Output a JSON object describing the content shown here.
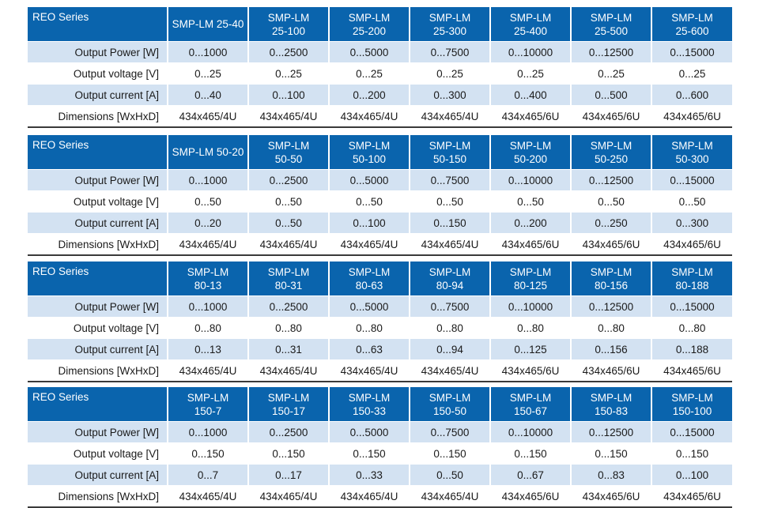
{
  "row_labels": {
    "series": "REO Series",
    "output_power": "Output Power [W]",
    "output_voltage": "Output voltage [V]",
    "output_current": "Output current [A]",
    "dimensions": "Dimensions [WxHxD]"
  },
  "tables": [
    {
      "models": [
        {
          "line1": "SMP-LM 25-40",
          "line2": ""
        },
        {
          "line1": "SMP-LM",
          "line2": "25-100"
        },
        {
          "line1": "SMP-LM",
          "line2": "25-200"
        },
        {
          "line1": "SMP-LM",
          "line2": "25-300"
        },
        {
          "line1": "SMP-LM",
          "line2": "25-400"
        },
        {
          "line1": "SMP-LM",
          "line2": "25-500"
        },
        {
          "line1": "SMP-LM",
          "line2": "25-600"
        }
      ],
      "output_power": [
        "0...1000",
        "0...2500",
        "0...5000",
        "0...7500",
        "0...10000",
        "0...12500",
        "0...15000"
      ],
      "output_voltage": [
        "0...25",
        "0...25",
        "0...25",
        "0...25",
        "0...25",
        "0...25",
        "0...25"
      ],
      "output_current": [
        "0...40",
        "0...100",
        "0...200",
        "0...300",
        "0...400",
        "0...500",
        "0...600"
      ],
      "dimensions": [
        "434x465/4U",
        "434x465/4U",
        "434x465/4U",
        "434x465/4U",
        "434x465/6U",
        "434x465/6U",
        "434x465/6U"
      ]
    },
    {
      "models": [
        {
          "line1": "SMP-LM 50-20",
          "line2": ""
        },
        {
          "line1": "SMP-LM",
          "line2": "50-50"
        },
        {
          "line1": "SMP-LM",
          "line2": "50-100"
        },
        {
          "line1": "SMP-LM",
          "line2": "50-150"
        },
        {
          "line1": "SMP-LM",
          "line2": "50-200"
        },
        {
          "line1": "SMP-LM",
          "line2": "50-250"
        },
        {
          "line1": "SMP-LM",
          "line2": "50-300"
        }
      ],
      "output_power": [
        "0...1000",
        "0...2500",
        "0...5000",
        "0...7500",
        "0...10000",
        "0...12500",
        "0...15000"
      ],
      "output_voltage": [
        "0...50",
        "0...50",
        "0...50",
        "0...50",
        "0...50",
        "0...50",
        "0...50"
      ],
      "output_current": [
        "0...20",
        "0...50",
        "0...100",
        "0...150",
        "0...200",
        "0...250",
        "0...300"
      ],
      "dimensions": [
        "434x465/4U",
        "434x465/4U",
        "434x465/4U",
        "434x465/4U",
        "434x465/6U",
        "434x465/6U",
        "434x465/6U"
      ]
    },
    {
      "models": [
        {
          "line1": "SMP-LM",
          "line2": "80-13"
        },
        {
          "line1": "SMP-LM",
          "line2": "80-31"
        },
        {
          "line1": "SMP-LM",
          "line2": "80-63"
        },
        {
          "line1": "SMP-LM",
          "line2": "80-94"
        },
        {
          "line1": "SMP-LM",
          "line2": "80-125"
        },
        {
          "line1": "SMP-LM",
          "line2": "80-156"
        },
        {
          "line1": "SMP-LM",
          "line2": "80-188"
        }
      ],
      "output_power": [
        "0...1000",
        "0...2500",
        "0...5000",
        "0...7500",
        "0...10000",
        "0...12500",
        "0...15000"
      ],
      "output_voltage": [
        "0...80",
        "0...80",
        "0...80",
        "0...80",
        "0...80",
        "0...80",
        "0...80"
      ],
      "output_current": [
        "0...13",
        "0...31",
        "0...63",
        "0...94",
        "0...125",
        "0...156",
        "0...188"
      ],
      "dimensions": [
        "434x465/4U",
        "434x465/4U",
        "434x465/4U",
        "434x465/4U",
        "434x465/6U",
        "434x465/6U",
        "434x465/6U"
      ]
    },
    {
      "models": [
        {
          "line1": "SMP-LM",
          "line2": "150-7"
        },
        {
          "line1": "SMP-LM",
          "line2": "150-17"
        },
        {
          "line1": "SMP-LM",
          "line2": "150-33"
        },
        {
          "line1": "SMP-LM",
          "line2": "150-50"
        },
        {
          "line1": "SMP-LM",
          "line2": "150-67"
        },
        {
          "line1": "SMP-LM",
          "line2": "150-83"
        },
        {
          "line1": "SMP-LM",
          "line2": "150-100"
        }
      ],
      "output_power": [
        "0...1000",
        "0...2500",
        "0...5000",
        "0...7500",
        "0...10000",
        "0...12500",
        "0...15000"
      ],
      "output_voltage": [
        "0...150",
        "0...150",
        "0...150",
        "0...150",
        "0...150",
        "0...150",
        "0...150"
      ],
      "output_current": [
        "0...7",
        "0...17",
        "0...33",
        "0...50",
        "0...67",
        "0...83",
        "0...100"
      ],
      "dimensions": [
        "434x465/4U",
        "434x465/4U",
        "434x465/4U",
        "434x465/4U",
        "434x465/6U",
        "434x465/6U",
        "434x465/6U"
      ]
    }
  ]
}
